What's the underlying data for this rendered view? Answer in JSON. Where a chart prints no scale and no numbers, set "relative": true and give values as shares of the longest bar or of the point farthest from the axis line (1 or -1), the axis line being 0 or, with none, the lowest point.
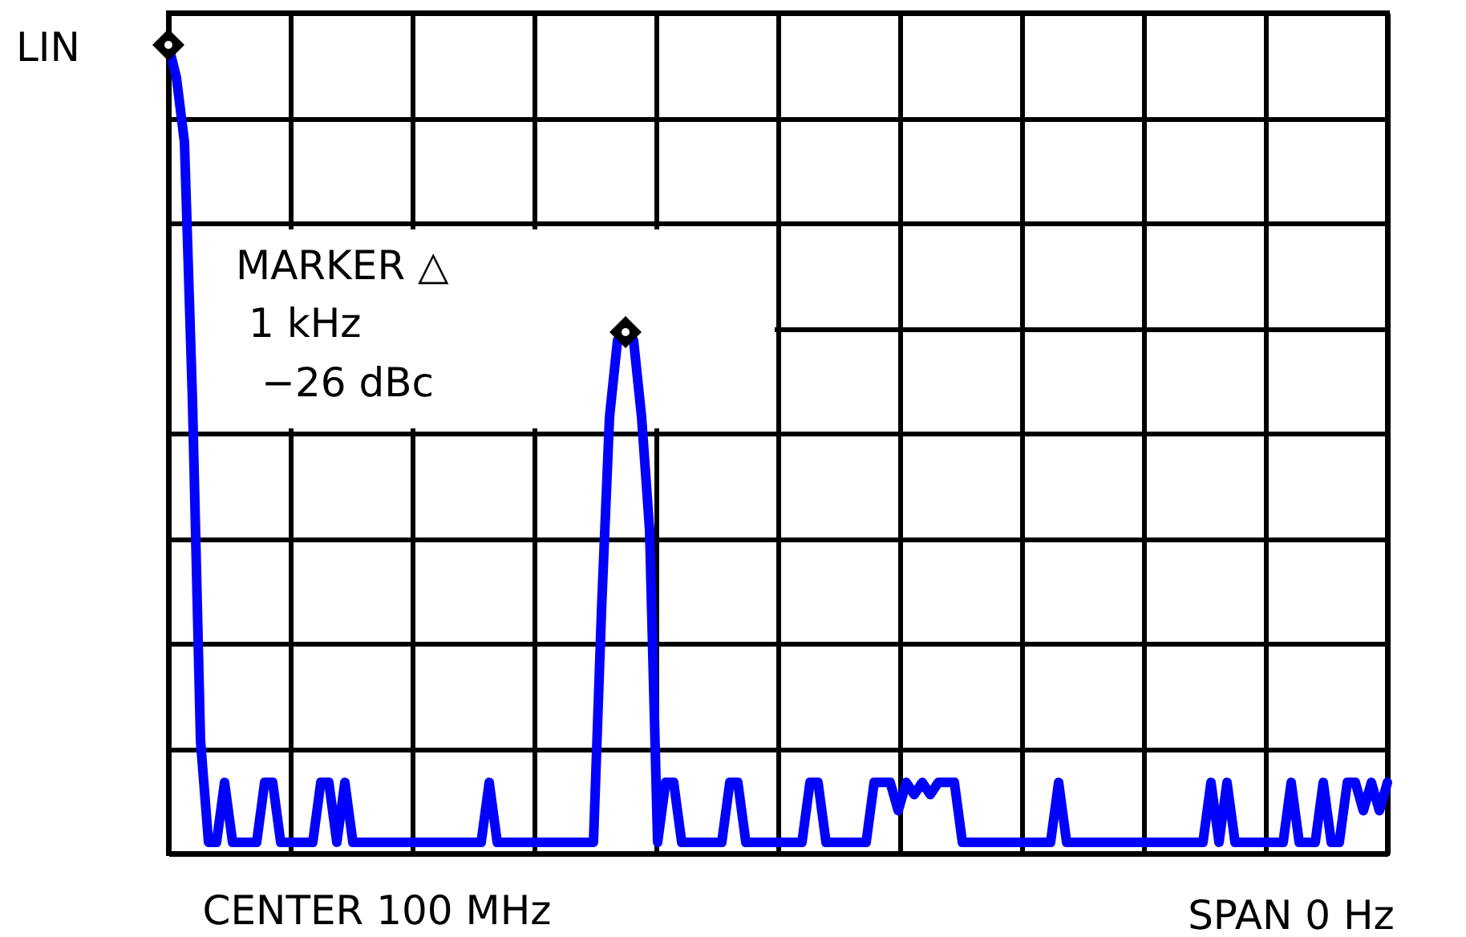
{
  "chart_data": {
    "type": "line",
    "relative": true,
    "grid": true,
    "line_style": "solid",
    "marker": "none",
    "categories": [
      null,
      null,
      null,
      null,
      null,
      null,
      null,
      null,
      null,
      null,
      null,
      null,
      null,
      null,
      null,
      null,
      null,
      null,
      null,
      null,
      null,
      null,
      null,
      null,
      null,
      null,
      null,
      null,
      null,
      null,
      null,
      null,
      null,
      null,
      null,
      null,
      null,
      null,
      null,
      null,
      null,
      null,
      null,
      null,
      null,
      null,
      null,
      null,
      null,
      null,
      null,
      null,
      null,
      null,
      null,
      null,
      null,
      null,
      null,
      null,
      null,
      null,
      null,
      null,
      null,
      null,
      null,
      null,
      null,
      null,
      null,
      null,
      null,
      null,
      null,
      null,
      null,
      null,
      null,
      null,
      null,
      null,
      null,
      null,
      null,
      null,
      null,
      null,
      null,
      null,
      null,
      null,
      null,
      null,
      null,
      null,
      null,
      null,
      null,
      null,
      null,
      null,
      null,
      null,
      null,
      null,
      null,
      null,
      null,
      null,
      null,
      null,
      null,
      null,
      null,
      null,
      null,
      null,
      null,
      null,
      null,
      null,
      null,
      null,
      null,
      null,
      null,
      null,
      null,
      null,
      null,
      null,
      null,
      null,
      null,
      null,
      null,
      null,
      null,
      null,
      null,
      null,
      null,
      null,
      null,
      null,
      null,
      null,
      null,
      null,
      null,
      null,
      null
    ],
    "series": [
      {
        "color": "#0000ff",
        "values": [
          1,
          0.96,
          0.88,
          0.56,
          0.14,
          0.014,
          0.014,
          0.088,
          0.014,
          0.014,
          0.014,
          0.014,
          0.088,
          0.088,
          0.014,
          0.014,
          0.014,
          0.014,
          0.014,
          0.088,
          0.088,
          0.014,
          0.088,
          0.014,
          0.014,
          0.014,
          0.014,
          0.014,
          0.014,
          0.014,
          0.014,
          0.014,
          0.014,
          0.014,
          0.014,
          0.014,
          0.014,
          0.014,
          0.014,
          0.014,
          0.088,
          0.014,
          0.014,
          0.014,
          0.014,
          0.014,
          0.014,
          0.014,
          0.014,
          0.014,
          0.014,
          0.014,
          0.014,
          0.014,
          0.3,
          0.54,
          0.635,
          0.645,
          0.635,
          0.54,
          0.4,
          0.014,
          0.088,
          0.088,
          0.014,
          0.014,
          0.014,
          0.014,
          0.014,
          0.014,
          0.088,
          0.088,
          0.014,
          0.014,
          0.014,
          0.014,
          0.014,
          0.014,
          0.014,
          0.014,
          0.088,
          0.088,
          0.014,
          0.014,
          0.014,
          0.014,
          0.014,
          0.014,
          0.088,
          0.088,
          0.088,
          0.053,
          0.088,
          0.073,
          0.088,
          0.073,
          0.088,
          0.088,
          0.088,
          0.014,
          0.014,
          0.014,
          0.014,
          0.014,
          0.014,
          0.014,
          0.014,
          0.014,
          0.014,
          0.014,
          0.014,
          0.088,
          0.014,
          0.014,
          0.014,
          0.014,
          0.014,
          0.014,
          0.014,
          0.014,
          0.014,
          0.014,
          0.014,
          0.014,
          0.014,
          0.014,
          0.014,
          0.014,
          0.014,
          0.014,
          0.088,
          0.014,
          0.088,
          0.014,
          0.014,
          0.014,
          0.014,
          0.014,
          0.014,
          0.014,
          0.088,
          0.014,
          0.014,
          0.014,
          0.088,
          0.014,
          0.014,
          0.088,
          0.088,
          0.053,
          0.088,
          0.053,
          0.088
        ]
      }
    ],
    "annotations": [
      "LIN",
      "MARKER △",
      "1 kHz",
      "−26 dBc",
      "CENTER 100 MHz",
      "SPAN 0 Hz"
    ]
  }
}
